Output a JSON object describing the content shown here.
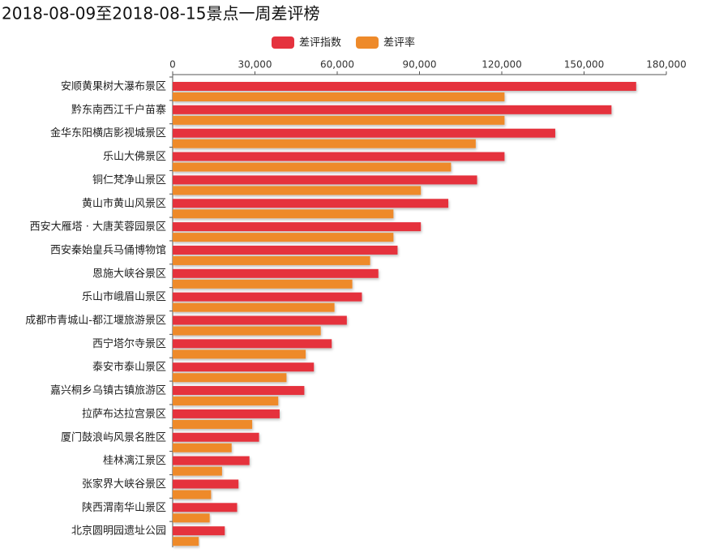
{
  "chart_data": {
    "type": "hbar",
    "title": "2018-08-09至2018-08-15景点一周差评榜",
    "categories": [
      "安顺黄果树大瀑布景区",
      "黔东南西江千户苗寨",
      "金华东阳横店影视城景区",
      "乐山大佛景区",
      "铜仁梵净山景区",
      "黄山市黄山风景区",
      "西安大雁塔 · 大唐芙蓉园景区",
      "西安秦始皇兵马俑博物馆",
      "恩施大峡谷景区",
      "乐山市峨眉山景区",
      "成都市青城山-都江堰旅游景区",
      "西宁塔尔寺景区",
      "泰安市泰山景区",
      "嘉兴桐乡乌镇古镇旅游区",
      "拉萨布达拉宫景区",
      "厦门鼓浪屿风景名胜区",
      "桂林漓江景区",
      "张家界大峡谷景区",
      "陕西渭南华山景区",
      "北京圆明园遗址公园"
    ],
    "series": [
      {
        "name": "差评指数",
        "color": "#e5323e",
        "values": [
          169000,
          160000,
          139500,
          121000,
          111000,
          100500,
          90500,
          82000,
          75000,
          69000,
          63500,
          58000,
          51500,
          48000,
          39000,
          31500,
          28000,
          24000,
          23500,
          19000
        ]
      },
      {
        "name": "差评率",
        "color": "#ee8a2a",
        "values": [
          121000,
          121000,
          110500,
          101500,
          90500,
          80500,
          80500,
          72000,
          65500,
          59000,
          54000,
          48500,
          41500,
          38500,
          29000,
          21500,
          18000,
          14000,
          13500,
          9500
        ]
      }
    ],
    "xlim": [
      0,
      180000
    ],
    "xticks": [
      0,
      {
        "value": 30000,
        "label": "30,000"
      },
      {
        "value": 60000,
        "label": "60,000"
      },
      {
        "value": 90000,
        "label": "90,000"
      },
      {
        "value": 120000,
        "label": "120,000"
      },
      {
        "value": 150000,
        "label": "150,000"
      },
      {
        "value": 180000,
        "label": "180,000"
      }
    ],
    "legend": "top"
  }
}
